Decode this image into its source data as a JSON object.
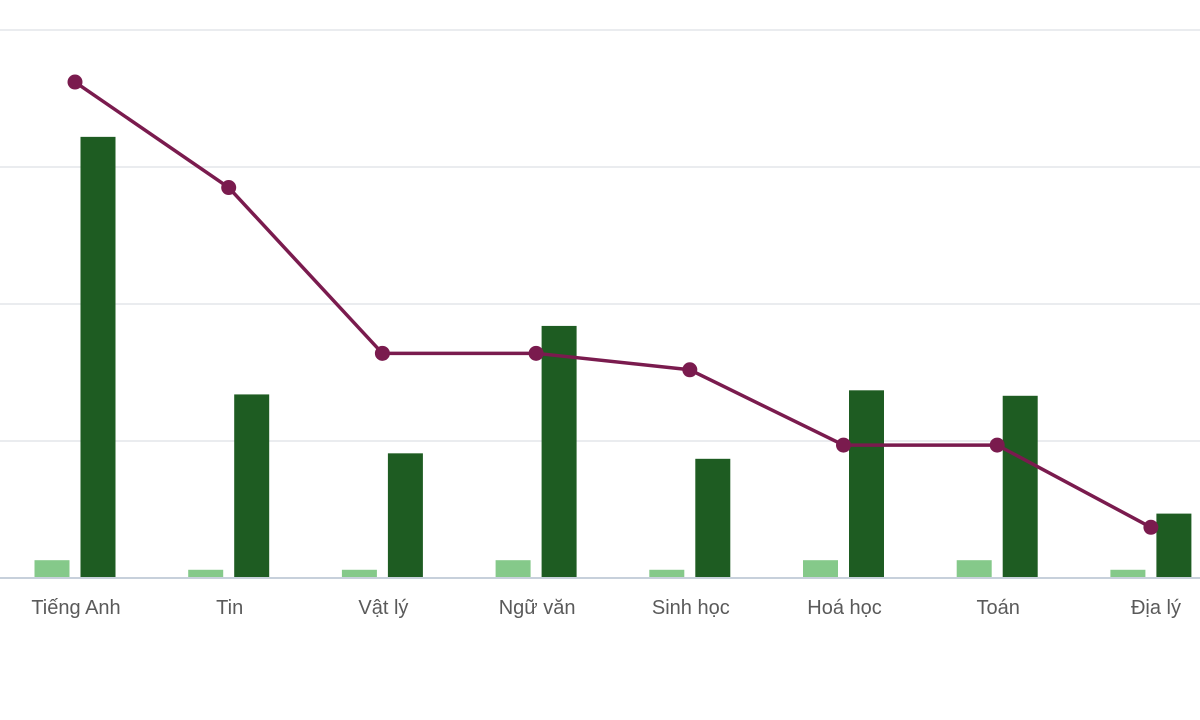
{
  "chart_data": {
    "type": "bar",
    "title": "",
    "xlabel": "",
    "ylabel": "",
    "categories": [
      "Tiếng Anh",
      "Tin",
      "Vật lý",
      "Ngữ văn",
      "Sinh học",
      "Hoá học",
      "Toán",
      "Địa lý"
    ],
    "ylim": [
      0,
      40
    ],
    "grid": true,
    "legend": "none",
    "series": [
      {
        "kind": "bar",
        "color": "#85c98a",
        "values": [
          1.3,
          0.6,
          0.6,
          1.3,
          0.6,
          1.3,
          1.3,
          0.6
        ]
      },
      {
        "kind": "bar",
        "color": "#1e5c22",
        "values": [
          32.2,
          13.4,
          9.1,
          18.4,
          8.7,
          13.7,
          13.3,
          4.7
        ]
      },
      {
        "kind": "line",
        "color": "#7a1b4e",
        "values": [
          36.2,
          28.5,
          16.4,
          16.4,
          15.2,
          9.7,
          9.7,
          3.7
        ]
      }
    ]
  }
}
